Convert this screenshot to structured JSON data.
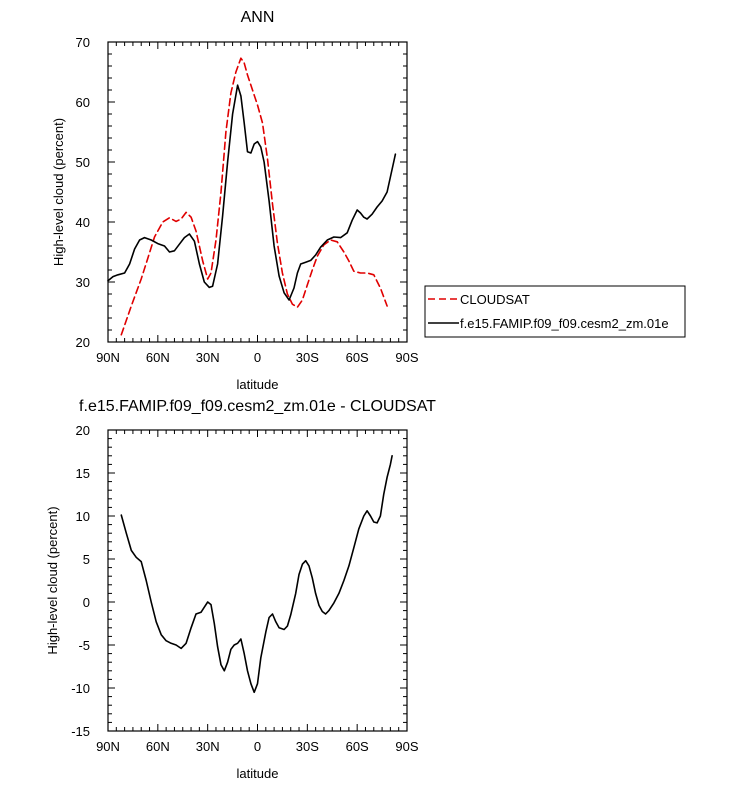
{
  "chart_data": [
    {
      "type": "line",
      "title": "ANN",
      "xlabel": "latitude",
      "ylabel": "High-level cloud (percent)",
      "xlim": [
        90,
        -90
      ],
      "ylim": [
        20,
        70
      ],
      "x_ticks": [
        {
          "value": 90,
          "label": "90N"
        },
        {
          "value": 60,
          "label": "60N"
        },
        {
          "value": 30,
          "label": "30N"
        },
        {
          "value": 0,
          "label": "0"
        },
        {
          "value": -30,
          "label": "30S"
        },
        {
          "value": -60,
          "label": "60S"
        },
        {
          "value": -90,
          "label": "90S"
        }
      ],
      "y_ticks": [
        20,
        30,
        40,
        50,
        60,
        70
      ],
      "legend": {
        "placement": "right",
        "boxed": true
      },
      "series": [
        {
          "name": "CLOUDSAT",
          "color": "#e00000",
          "dash": "dashed",
          "points": [
            [
              82,
              21.2
            ],
            [
              76,
              26
            ],
            [
              70,
              30.5
            ],
            [
              66,
              34
            ],
            [
              62,
              37.5
            ],
            [
              57,
              40
            ],
            [
              53,
              40.7
            ],
            [
              49,
              40.1
            ],
            [
              46,
              40.5
            ],
            [
              43,
              41.6
            ],
            [
              40,
              40.8
            ],
            [
              37,
              38.5
            ],
            [
              33,
              33.5
            ],
            [
              30,
              30.5
            ],
            [
              28,
              31.5
            ],
            [
              25,
              37
            ],
            [
              22,
              45
            ],
            [
              19,
              55
            ],
            [
              16,
              61.5
            ],
            [
              13,
              65
            ],
            [
              10,
              67.3
            ],
            [
              8,
              66.5
            ],
            [
              6,
              64.5
            ],
            [
              3,
              62
            ],
            [
              0,
              59.5
            ],
            [
              -3,
              56.5
            ],
            [
              -6,
              50.5
            ],
            [
              -9,
              43
            ],
            [
              -12,
              36.5
            ],
            [
              -15,
              31.5
            ],
            [
              -18,
              28
            ],
            [
              -21,
              26.3
            ],
            [
              -24,
              25.8
            ],
            [
              -27,
              27
            ],
            [
              -30,
              29.5
            ],
            [
              -33,
              32
            ],
            [
              -36,
              34.3
            ],
            [
              -40,
              36.2
            ],
            [
              -44,
              37
            ],
            [
              -48,
              36.7
            ],
            [
              -52,
              35
            ],
            [
              -55,
              33.5
            ],
            [
              -58,
              31.8
            ],
            [
              -62,
              31.5
            ],
            [
              -66,
              31.5
            ],
            [
              -70,
              31.2
            ],
            [
              -74,
              29
            ],
            [
              -78,
              26
            ]
          ]
        },
        {
          "name": "f.e15.FAMIP.f09_f09.cesm2_zm.01e",
          "color": "#000000",
          "dash": "solid",
          "points": [
            [
              90,
              30.2
            ],
            [
              87,
              30.9
            ],
            [
              84,
              31.2
            ],
            [
              80,
              31.5
            ],
            [
              77,
              33
            ],
            [
              74,
              35.5
            ],
            [
              71,
              37
            ],
            [
              68,
              37.4
            ],
            [
              64,
              37
            ],
            [
              60,
              36.4
            ],
            [
              56,
              36
            ],
            [
              53,
              35
            ],
            [
              50,
              35.2
            ],
            [
              47,
              36.3
            ],
            [
              44,
              37.4
            ],
            [
              41,
              38
            ],
            [
              38,
              36.8
            ],
            [
              35,
              33
            ],
            [
              32,
              30
            ],
            [
              29,
              29.1
            ],
            [
              27,
              29.3
            ],
            [
              24,
              33
            ],
            [
              21,
              41
            ],
            [
              18,
              50
            ],
            [
              15,
              58
            ],
            [
              12,
              62.8
            ],
            [
              10,
              61
            ],
            [
              8,
              56.5
            ],
            [
              6,
              51.7
            ],
            [
              4,
              51.5
            ],
            [
              2,
              53
            ],
            [
              0,
              53.4
            ],
            [
              -2,
              52.5
            ],
            [
              -4,
              50
            ],
            [
              -7,
              43.5
            ],
            [
              -10,
              36
            ],
            [
              -13,
              31
            ],
            [
              -16,
              28.2
            ],
            [
              -19,
              27
            ],
            [
              -22,
              29
            ],
            [
              -24,
              31.5
            ],
            [
              -26,
              33
            ],
            [
              -29,
              33.3
            ],
            [
              -32,
              33.6
            ],
            [
              -35,
              34.5
            ],
            [
              -38,
              35.8
            ],
            [
              -42,
              37
            ],
            [
              -46,
              37.5
            ],
            [
              -50,
              37.4
            ],
            [
              -54,
              38.2
            ],
            [
              -57,
              40.3
            ],
            [
              -60,
              42
            ],
            [
              -62,
              41.5
            ],
            [
              -64,
              40.8
            ],
            [
              -66,
              40.5
            ],
            [
              -69,
              41.3
            ],
            [
              -72,
              42.5
            ],
            [
              -75,
              43.5
            ],
            [
              -78,
              45
            ],
            [
              -80,
              47.5
            ],
            [
              -82,
              50
            ],
            [
              -83,
              51.3
            ]
          ]
        }
      ]
    },
    {
      "type": "line",
      "title": "f.e15.FAMIP.f09_f09.cesm2_zm.01e - CLOUDSAT",
      "xlabel": "latitude",
      "ylabel": "High-level cloud (percent)",
      "xlim": [
        90,
        -90
      ],
      "ylim": [
        -15,
        20
      ],
      "x_ticks": [
        {
          "value": 90,
          "label": "90N"
        },
        {
          "value": 60,
          "label": "60N"
        },
        {
          "value": 30,
          "label": "30N"
        },
        {
          "value": 0,
          "label": "0"
        },
        {
          "value": -30,
          "label": "30S"
        },
        {
          "value": -60,
          "label": "60S"
        },
        {
          "value": -90,
          "label": "90S"
        }
      ],
      "y_ticks": [
        -15,
        -10,
        -5,
        0,
        5,
        10,
        15,
        20
      ],
      "series": [
        {
          "color": "#000000",
          "dash": "solid",
          "points": [
            [
              82,
              10.1
            ],
            [
              79,
              8
            ],
            [
              76,
              6
            ],
            [
              73,
              5.2
            ],
            [
              70,
              4.7
            ],
            [
              67,
              2.5
            ],
            [
              64,
              0
            ],
            [
              61,
              -2.3
            ],
            [
              58,
              -3.8
            ],
            [
              55,
              -4.5
            ],
            [
              52,
              -4.8
            ],
            [
              49,
              -5
            ],
            [
              46,
              -5.4
            ],
            [
              43,
              -4.8
            ],
            [
              40,
              -3
            ],
            [
              37,
              -1.4
            ],
            [
              34,
              -1.2
            ],
            [
              32,
              -0.6
            ],
            [
              30,
              0
            ],
            [
              28,
              -0.3
            ],
            [
              26,
              -2.5
            ],
            [
              24,
              -5.2
            ],
            [
              22,
              -7.3
            ],
            [
              20,
              -8
            ],
            [
              18,
              -7
            ],
            [
              16,
              -5.5
            ],
            [
              14,
              -5
            ],
            [
              12,
              -4.8
            ],
            [
              10,
              -4.3
            ],
            [
              8,
              -6
            ],
            [
              6,
              -8
            ],
            [
              4,
              -9.5
            ],
            [
              2,
              -10.5
            ],
            [
              0,
              -9.5
            ],
            [
              -2,
              -6.5
            ],
            [
              -5,
              -3.5
            ],
            [
              -7,
              -1.8
            ],
            [
              -9,
              -1.4
            ],
            [
              -11,
              -2.3
            ],
            [
              -13,
              -3
            ],
            [
              -16,
              -3.2
            ],
            [
              -18,
              -2.8
            ],
            [
              -20,
              -1.5
            ],
            [
              -23,
              1
            ],
            [
              -25,
              3.2
            ],
            [
              -27,
              4.4
            ],
            [
              -29,
              4.8
            ],
            [
              -31,
              4.2
            ],
            [
              -33,
              2.8
            ],
            [
              -35,
              1
            ],
            [
              -37,
              -0.4
            ],
            [
              -39,
              -1.1
            ],
            [
              -41,
              -1.4
            ],
            [
              -43,
              -1
            ],
            [
              -46,
              -0.1
            ],
            [
              -49,
              1
            ],
            [
              -52,
              2.5
            ],
            [
              -55,
              4.2
            ],
            [
              -58,
              6.3
            ],
            [
              -61,
              8.5
            ],
            [
              -64,
              10
            ],
            [
              -66,
              10.6
            ],
            [
              -68,
              10
            ],
            [
              -70,
              9.3
            ],
            [
              -72,
              9.2
            ],
            [
              -74,
              10
            ],
            [
              -76,
              12.5
            ],
            [
              -78,
              14.5
            ],
            [
              -80,
              16
            ],
            [
              -81,
              17
            ]
          ]
        }
      ]
    }
  ]
}
